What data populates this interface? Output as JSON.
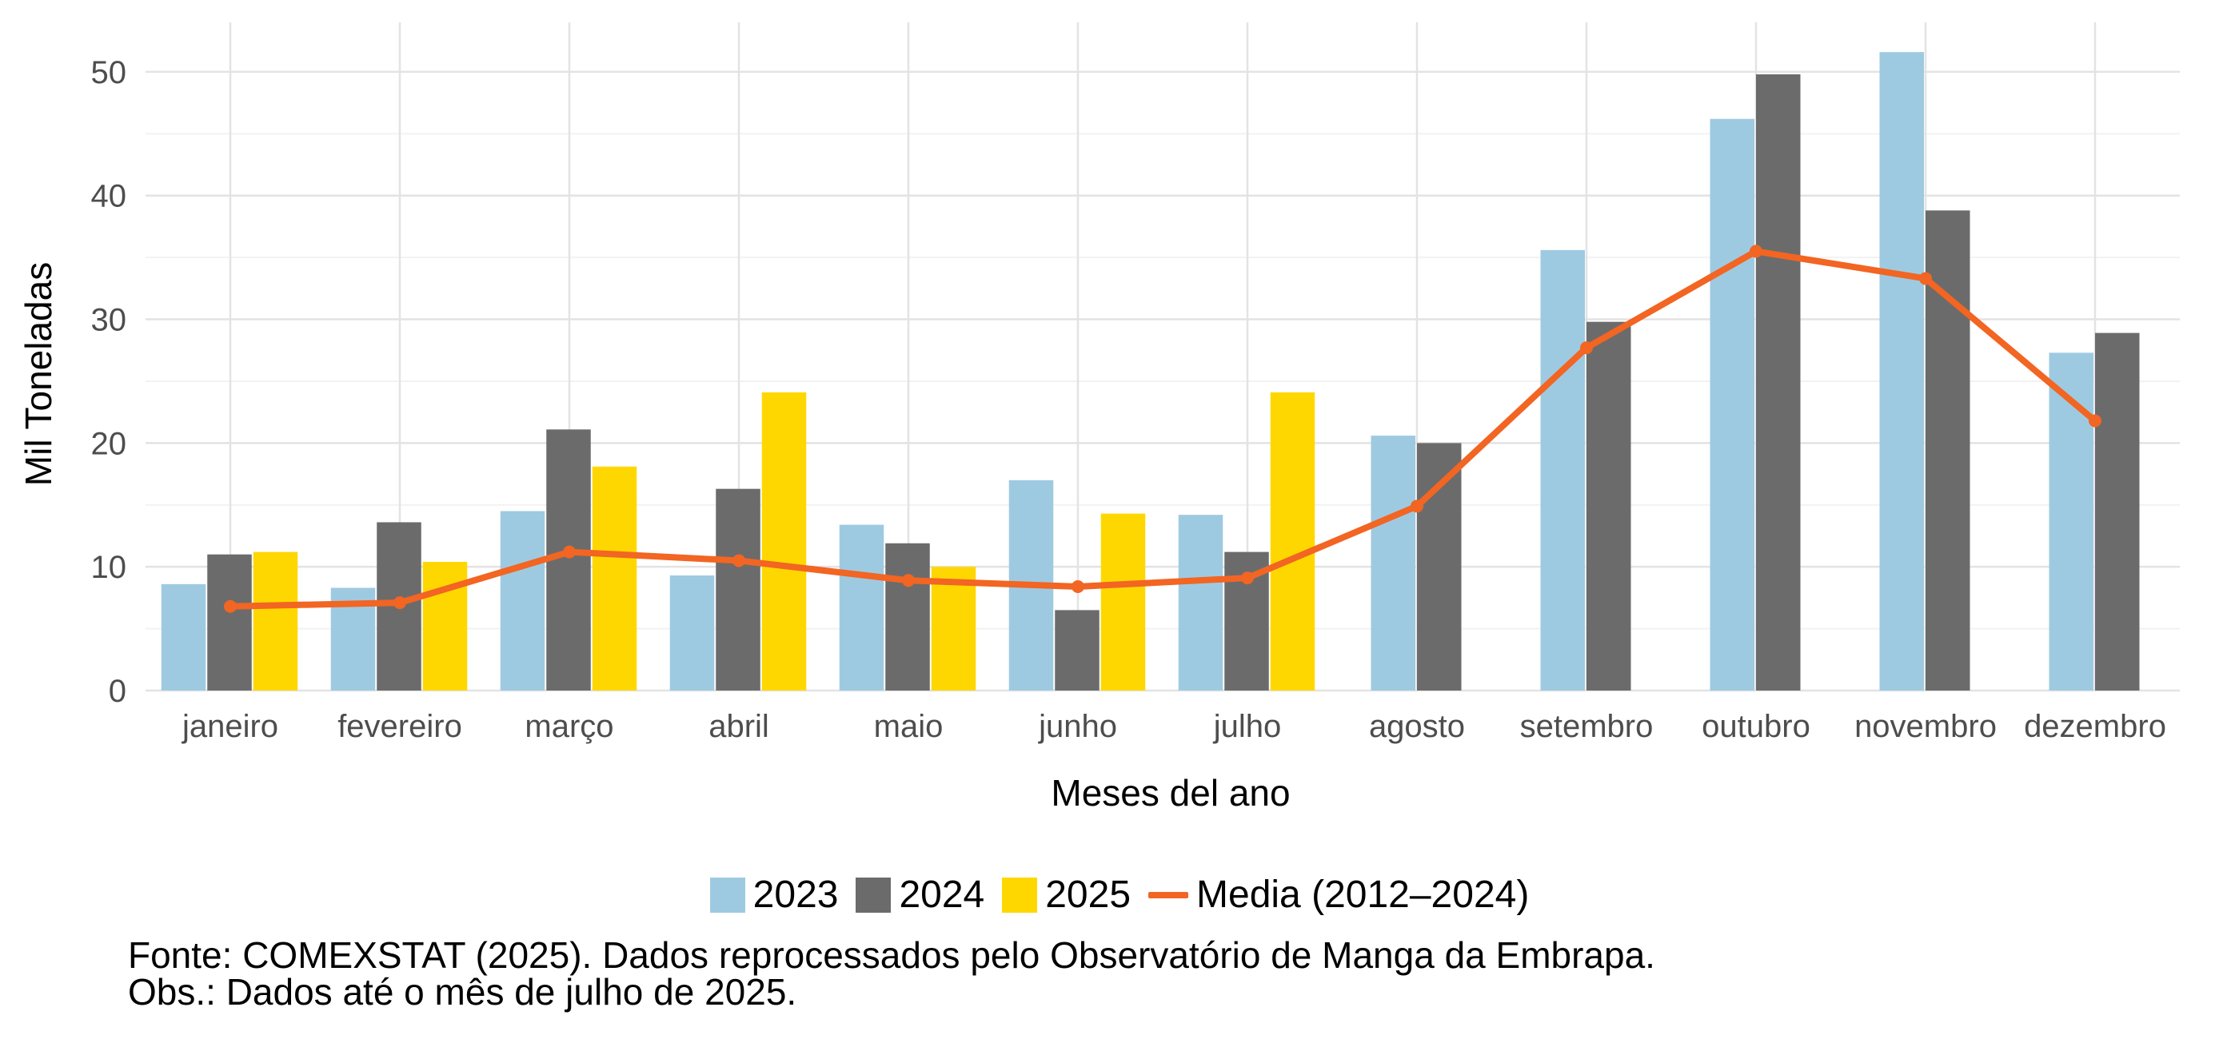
{
  "chart_data": {
    "type": "bar",
    "xlabel": "Meses del ano",
    "ylabel": "Mil Toneladas",
    "ylim": [
      0,
      54
    ],
    "yticks": [
      0,
      10,
      20,
      30,
      40,
      50
    ],
    "grid": true,
    "legend_position": "bottom",
    "categories": [
      "janeiro",
      "fevereiro",
      "março",
      "abril",
      "maio",
      "junho",
      "julho",
      "agosto",
      "setembro",
      "outubro",
      "novembro",
      "dezembro"
    ],
    "series": [
      {
        "name": "2023",
        "kind": "bar",
        "color": "#9ecae1",
        "values": [
          8.6,
          8.3,
          14.5,
          9.3,
          13.4,
          17.0,
          14.2,
          20.6,
          35.6,
          46.2,
          51.6,
          27.3
        ]
      },
      {
        "name": "2024",
        "kind": "bar",
        "color": "#6b6b6b",
        "values": [
          11.0,
          13.6,
          21.1,
          16.3,
          11.9,
          6.5,
          11.2,
          20.0,
          29.8,
          49.8,
          38.8,
          28.9
        ]
      },
      {
        "name": "2025",
        "kind": "bar",
        "color": "#ffd700",
        "values": [
          11.2,
          10.4,
          18.1,
          24.1,
          10.0,
          14.3,
          24.1,
          null,
          null,
          null,
          null,
          null
        ]
      },
      {
        "name": "Media (2012–2024)",
        "kind": "line",
        "color": "#f26522",
        "values": [
          6.8,
          7.1,
          11.2,
          10.5,
          8.9,
          8.4,
          9.1,
          14.9,
          27.7,
          35.5,
          33.3,
          21.8
        ]
      }
    ]
  },
  "notes": {
    "source": "Fonte: COMEXSTAT (2025). Dados reprocessados pelo Observatório de Manga da Embrapa.",
    "obs": "Obs.: Dados até o mês de julho de 2025."
  }
}
